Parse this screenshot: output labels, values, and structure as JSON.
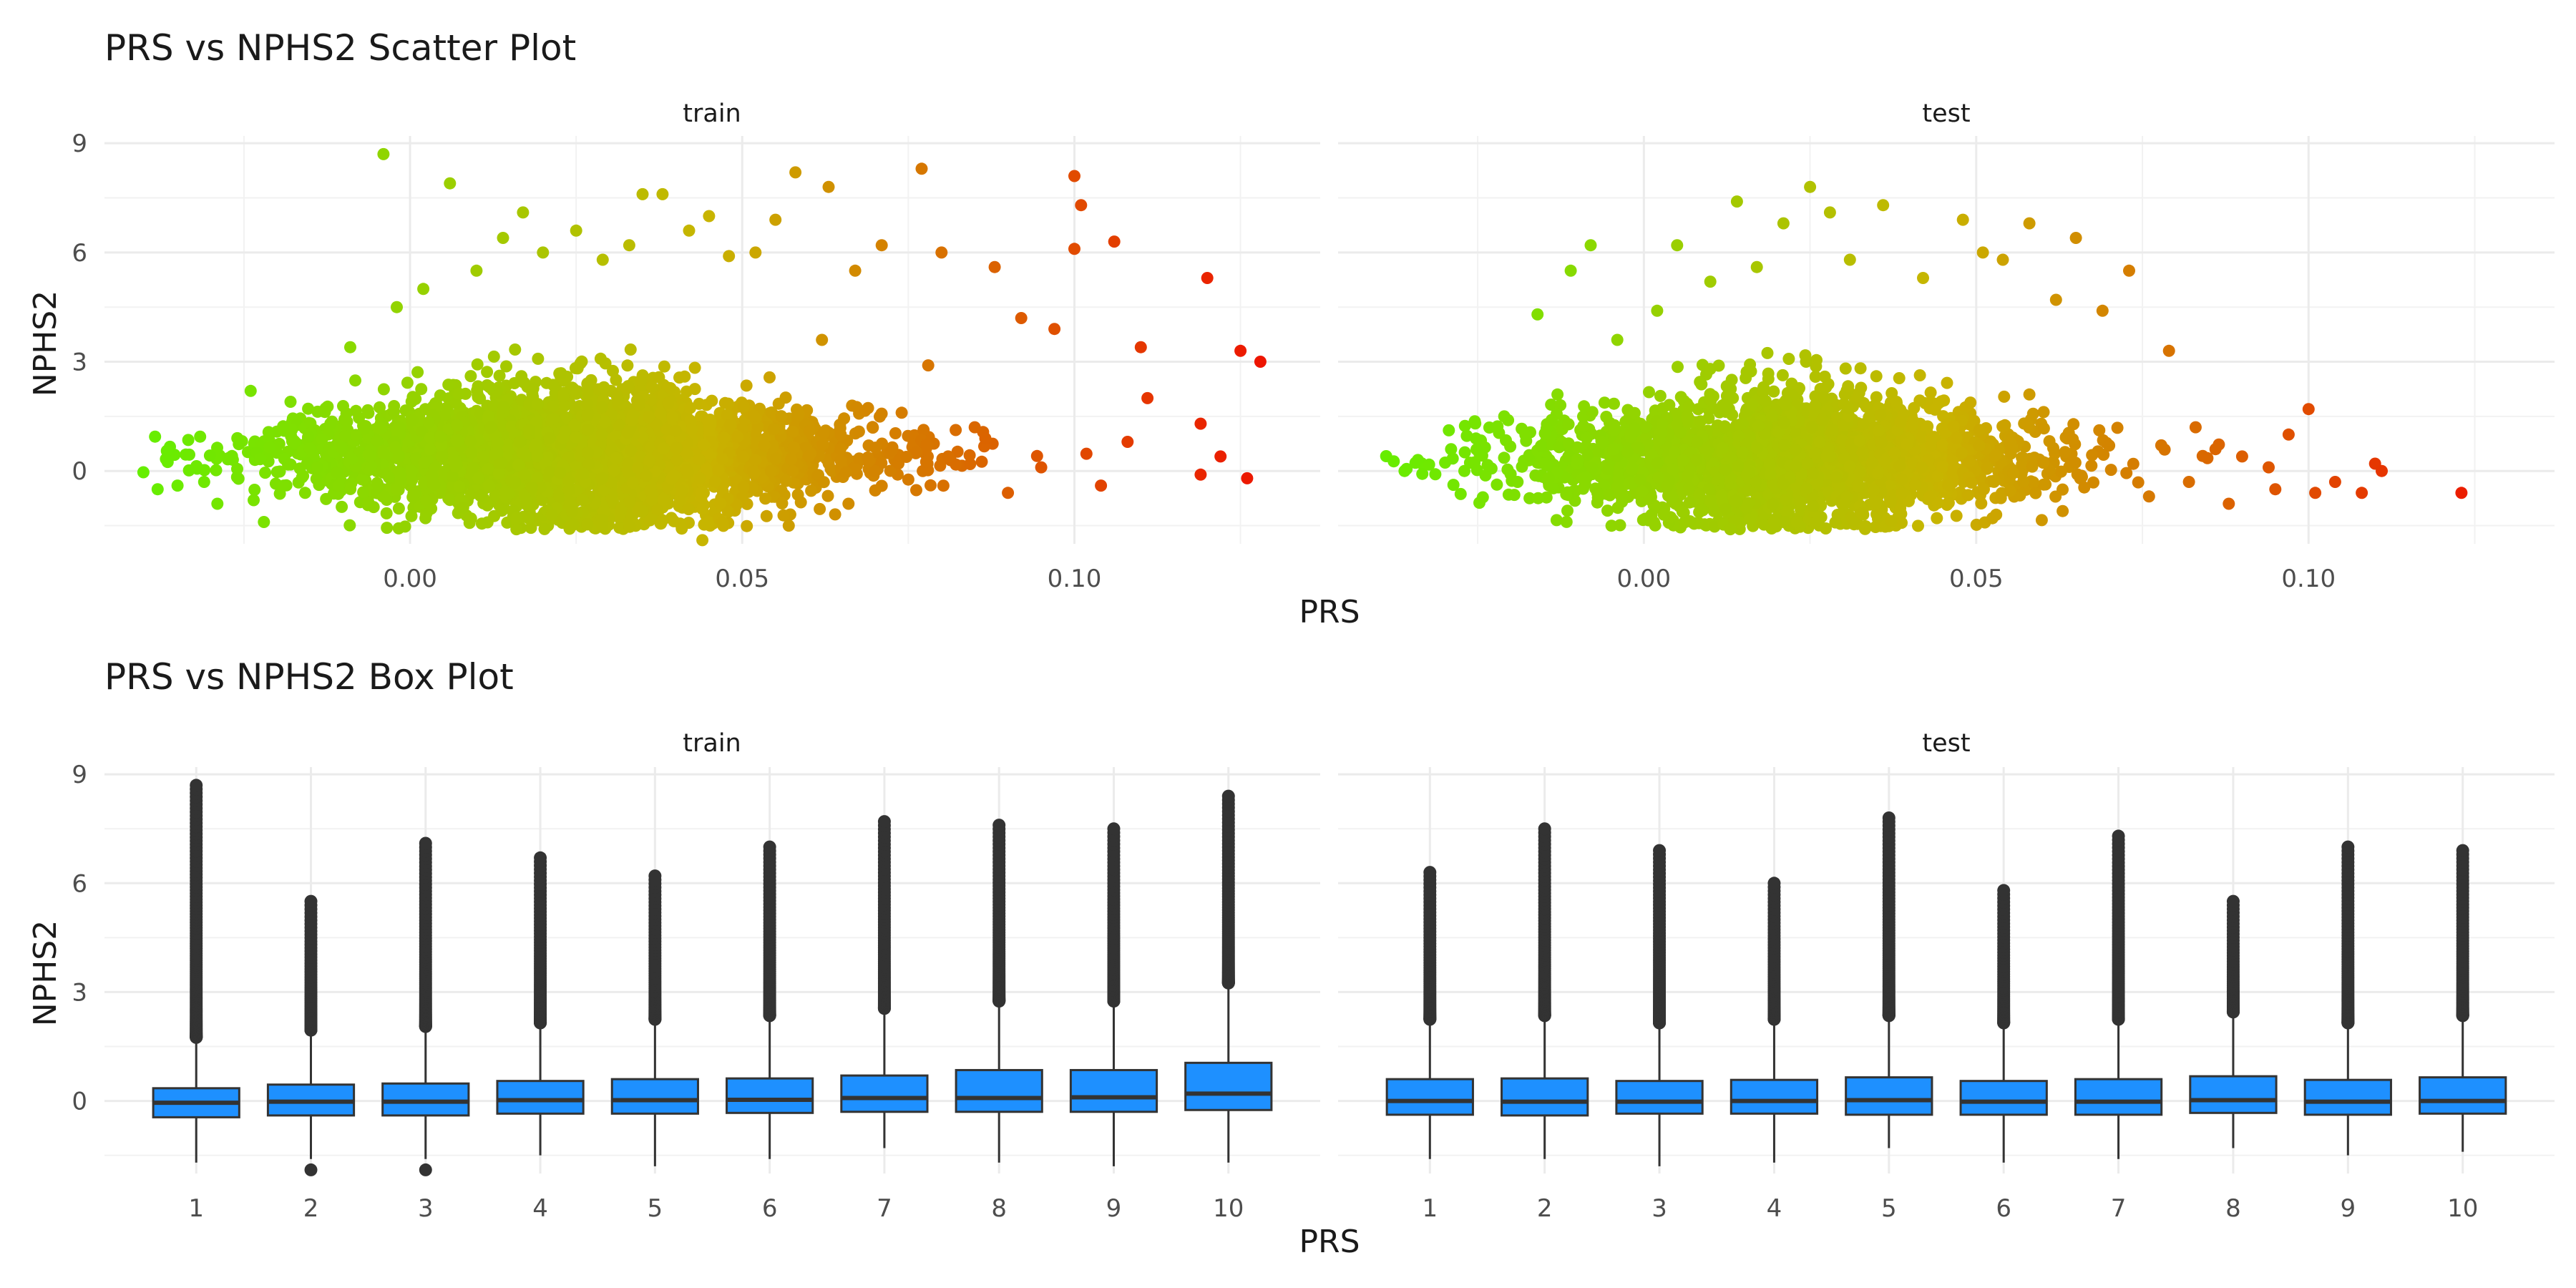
{
  "chart_data": [
    {
      "type": "scatter",
      "title": "PRS vs NPHS2 Scatter Plot",
      "xlabel": "PRS",
      "ylabel": "NPHS2",
      "facets": [
        "train",
        "test"
      ],
      "xlim": [
        -0.046,
        0.137
      ],
      "ylim": [
        -2.0,
        9.2
      ],
      "x_ticks": [
        0.0,
        0.05,
        0.1
      ],
      "x_tick_labels": [
        "0.00",
        "0.05",
        "0.10"
      ],
      "y_ticks": [
        0,
        3,
        6,
        9
      ],
      "y_tick_labels": [
        "0",
        "3",
        "6",
        "9"
      ],
      "grid": true,
      "legend": "none",
      "color_gradient": {
        "low_prs": "#66ee00",
        "mid_prs": "#c8b400",
        "high_prs": "#ee1100"
      },
      "series": [
        {
          "facet": "train",
          "description": "dense cloud centered near PRS 0.025, NPHS2 0.5; n≈thousands",
          "points": [
            [
              -0.038,
              -0.5
            ],
            [
              -0.035,
              -0.4
            ],
            [
              -0.031,
              -0.3
            ],
            [
              -0.029,
              -0.9
            ],
            [
              -0.026,
              0.9
            ],
            [
              -0.024,
              2.2
            ],
            [
              -0.022,
              -1.4
            ],
            [
              -0.018,
              1.9
            ],
            [
              -0.012,
              1.3
            ],
            [
              -0.009,
              3.4
            ],
            [
              -0.004,
              8.7
            ],
            [
              -0.002,
              4.5
            ],
            [
              0.002,
              5.0
            ],
            [
              0.006,
              7.9
            ],
            [
              0.01,
              5.5
            ],
            [
              0.014,
              6.4
            ],
            [
              0.017,
              7.1
            ],
            [
              0.02,
              6.0
            ],
            [
              0.025,
              6.6
            ],
            [
              0.029,
              5.8
            ],
            [
              0.033,
              6.2
            ],
            [
              0.035,
              7.6
            ],
            [
              0.038,
              7.6
            ],
            [
              0.042,
              6.6
            ],
            [
              0.045,
              7.0
            ],
            [
              0.048,
              5.9
            ],
            [
              0.052,
              6.0
            ],
            [
              0.055,
              6.9
            ],
            [
              0.058,
              8.2
            ],
            [
              0.063,
              7.8
            ],
            [
              0.067,
              5.5
            ],
            [
              0.071,
              6.2
            ],
            [
              0.077,
              8.3
            ],
            [
              0.08,
              6.0
            ],
            [
              0.088,
              5.6
            ],
            [
              0.092,
              4.2
            ],
            [
              0.097,
              3.9
            ],
            [
              0.1,
              8.1
            ],
            [
              0.101,
              7.3
            ],
            [
              0.1,
              6.1
            ],
            [
              0.106,
              6.3
            ],
            [
              0.11,
              3.4
            ],
            [
              0.111,
              2.0
            ],
            [
              0.119,
              1.3
            ],
            [
              0.12,
              5.3
            ],
            [
              0.122,
              0.4
            ],
            [
              0.125,
              3.3
            ],
            [
              0.126,
              -0.2
            ],
            [
              0.128,
              3.0
            ],
            [
              0.119,
              -0.1
            ],
            [
              0.108,
              0.8
            ],
            [
              0.104,
              -0.4
            ],
            [
              0.095,
              0.1
            ],
            [
              0.09,
              -0.6
            ],
            [
              0.085,
              1.2
            ],
            [
              0.081,
              0.4
            ],
            [
              0.078,
              2.9
            ],
            [
              0.074,
              1.6
            ],
            [
              0.07,
              0.0
            ],
            [
              0.066,
              -0.9
            ],
            [
              0.062,
              3.6
            ],
            [
              0.057,
              -1.5
            ],
            [
              0.052,
              0.3
            ],
            [
              0.047,
              -1.4
            ],
            [
              0.044,
              -1.9
            ],
            [
              0.04,
              1.1
            ],
            [
              0.035,
              -1.1
            ],
            [
              0.031,
              2.5
            ],
            [
              0.026,
              -0.8
            ],
            [
              0.021,
              0.9
            ],
            [
              0.016,
              -1.3
            ],
            [
              0.012,
              2.3
            ],
            [
              0.008,
              -1.0
            ],
            [
              0.003,
              0.6
            ],
            [
              -0.002,
              -0.5
            ],
            [
              -0.006,
              0.4
            ],
            [
              -0.014,
              0.1
            ],
            [
              -0.019,
              -0.4
            ]
          ]
        },
        {
          "facet": "test",
          "description": "dense cloud centered near PRS 0.022, NPHS2 0.3",
          "points": [
            [
              -0.036,
              0.0
            ],
            [
              -0.034,
              0.3
            ],
            [
              -0.029,
              0.6
            ],
            [
              -0.027,
              0.0
            ],
            [
              -0.021,
              1.5
            ],
            [
              -0.019,
              -0.3
            ],
            [
              -0.016,
              4.3
            ],
            [
              -0.013,
              2.1
            ],
            [
              -0.011,
              5.5
            ],
            [
              -0.008,
              6.2
            ],
            [
              -0.004,
              3.6
            ],
            [
              0.002,
              4.4
            ],
            [
              0.005,
              6.2
            ],
            [
              0.01,
              5.2
            ],
            [
              0.014,
              7.4
            ],
            [
              0.017,
              5.6
            ],
            [
              0.021,
              6.8
            ],
            [
              0.025,
              7.8
            ],
            [
              0.028,
              7.1
            ],
            [
              0.031,
              5.8
            ],
            [
              0.036,
              7.3
            ],
            [
              0.042,
              5.3
            ],
            [
              0.048,
              6.9
            ],
            [
              0.051,
              6.0
            ],
            [
              0.054,
              5.8
            ],
            [
              0.058,
              6.8
            ],
            [
              0.062,
              4.7
            ],
            [
              0.065,
              6.4
            ],
            [
              0.069,
              4.4
            ],
            [
              0.073,
              5.5
            ],
            [
              0.079,
              3.3
            ],
            [
              0.083,
              1.2
            ],
            [
              0.086,
              0.6
            ],
            [
              0.09,
              0.4
            ],
            [
              0.094,
              0.1
            ],
            [
              0.097,
              1.0
            ],
            [
              0.1,
              1.7
            ],
            [
              0.101,
              -0.6
            ],
            [
              0.104,
              -0.3
            ],
            [
              0.108,
              -0.6
            ],
            [
              0.11,
              0.2
            ],
            [
              0.111,
              0.0
            ],
            [
              0.123,
              -0.6
            ],
            [
              0.095,
              -0.5
            ],
            [
              0.088,
              -0.9
            ],
            [
              0.082,
              -0.3
            ],
            [
              0.076,
              -0.7
            ],
            [
              0.07,
              0.7
            ],
            [
              0.063,
              -1.1
            ],
            [
              0.058,
              2.1
            ],
            [
              0.053,
              -1.2
            ],
            [
              0.047,
              0.9
            ],
            [
              0.043,
              -0.7
            ],
            [
              0.038,
              1.9
            ],
            [
              0.033,
              -1.2
            ],
            [
              0.028,
              0.4
            ],
            [
              0.023,
              -1.4
            ],
            [
              0.018,
              2.3
            ],
            [
              0.013,
              -1.6
            ],
            [
              0.008,
              0.8
            ],
            [
              0.003,
              -1.2
            ],
            [
              -0.002,
              1.0
            ],
            [
              -0.007,
              -0.6
            ],
            [
              -0.015,
              0.2
            ]
          ]
        }
      ]
    },
    {
      "type": "box",
      "title": "PRS vs NPHS2 Box Plot",
      "xlabel": "PRS",
      "ylabel": "NPHS2",
      "facets": [
        "train",
        "test"
      ],
      "categories": [
        "1",
        "2",
        "3",
        "4",
        "5",
        "6",
        "7",
        "8",
        "9",
        "10"
      ],
      "ylim": [
        -2.0,
        9.2
      ],
      "y_ticks": [
        0,
        3,
        6,
        9
      ],
      "y_tick_labels": [
        "0",
        "3",
        "6",
        "9"
      ],
      "grid": true,
      "box_fill": "#1e90ff",
      "series": [
        {
          "facet": "train",
          "boxes": [
            {
              "q1": -0.45,
              "median": -0.05,
              "q3": 0.35,
              "lower": -1.7,
              "upper": 1.6,
              "outlier_max": 8.7,
              "outlier_min": null
            },
            {
              "q1": -0.4,
              "median": -0.02,
              "q3": 0.45,
              "lower": -1.6,
              "upper": 1.8,
              "outlier_max": 5.5,
              "outlier_min": -1.9
            },
            {
              "q1": -0.4,
              "median": -0.02,
              "q3": 0.48,
              "lower": -1.6,
              "upper": 1.9,
              "outlier_max": 7.1,
              "outlier_min": -1.9
            },
            {
              "q1": -0.35,
              "median": 0.02,
              "q3": 0.55,
              "lower": -1.5,
              "upper": 2.0,
              "outlier_max": 6.7,
              "outlier_min": null
            },
            {
              "q1": -0.35,
              "median": 0.02,
              "q3": 0.6,
              "lower": -1.8,
              "upper": 2.1,
              "outlier_max": 6.2,
              "outlier_min": null
            },
            {
              "q1": -0.33,
              "median": 0.03,
              "q3": 0.62,
              "lower": -1.6,
              "upper": 2.2,
              "outlier_max": 7.0,
              "outlier_min": null
            },
            {
              "q1": -0.3,
              "median": 0.08,
              "q3": 0.7,
              "lower": -1.3,
              "upper": 2.4,
              "outlier_max": 7.7,
              "outlier_min": null
            },
            {
              "q1": -0.3,
              "median": 0.08,
              "q3": 0.85,
              "lower": -1.7,
              "upper": 2.6,
              "outlier_max": 7.6,
              "outlier_min": null
            },
            {
              "q1": -0.3,
              "median": 0.1,
              "q3": 0.85,
              "lower": -1.8,
              "upper": 2.6,
              "outlier_max": 7.5,
              "outlier_min": null
            },
            {
              "q1": -0.25,
              "median": 0.2,
              "q3": 1.05,
              "lower": -1.7,
              "upper": 3.1,
              "outlier_max": 8.4,
              "outlier_min": null
            }
          ]
        },
        {
          "facet": "test",
          "boxes": [
            {
              "q1": -0.38,
              "median": 0.0,
              "q3": 0.6,
              "lower": -1.6,
              "upper": 2.1,
              "outlier_max": 6.3,
              "outlier_min": null
            },
            {
              "q1": -0.4,
              "median": -0.02,
              "q3": 0.62,
              "lower": -1.6,
              "upper": 2.2,
              "outlier_max": 7.5,
              "outlier_min": null
            },
            {
              "q1": -0.35,
              "median": -0.02,
              "q3": 0.55,
              "lower": -1.8,
              "upper": 2.0,
              "outlier_max": 6.9,
              "outlier_min": null
            },
            {
              "q1": -0.35,
              "median": 0.0,
              "q3": 0.58,
              "lower": -1.7,
              "upper": 2.1,
              "outlier_max": 6.0,
              "outlier_min": null
            },
            {
              "q1": -0.38,
              "median": 0.02,
              "q3": 0.65,
              "lower": -1.3,
              "upper": 2.2,
              "outlier_max": 7.8,
              "outlier_min": null
            },
            {
              "q1": -0.38,
              "median": -0.02,
              "q3": 0.55,
              "lower": -1.7,
              "upper": 2.0,
              "outlier_max": 5.8,
              "outlier_min": null
            },
            {
              "q1": -0.38,
              "median": -0.02,
              "q3": 0.6,
              "lower": -1.6,
              "upper": 2.1,
              "outlier_max": 7.3,
              "outlier_min": null
            },
            {
              "q1": -0.33,
              "median": 0.02,
              "q3": 0.68,
              "lower": -1.3,
              "upper": 2.3,
              "outlier_max": 5.5,
              "outlier_min": null
            },
            {
              "q1": -0.38,
              "median": -0.02,
              "q3": 0.58,
              "lower": -1.5,
              "upper": 2.0,
              "outlier_max": 7.0,
              "outlier_min": null
            },
            {
              "q1": -0.35,
              "median": 0.0,
              "q3": 0.65,
              "lower": -1.4,
              "upper": 2.2,
              "outlier_max": 6.9,
              "outlier_min": null
            }
          ]
        }
      ]
    }
  ]
}
